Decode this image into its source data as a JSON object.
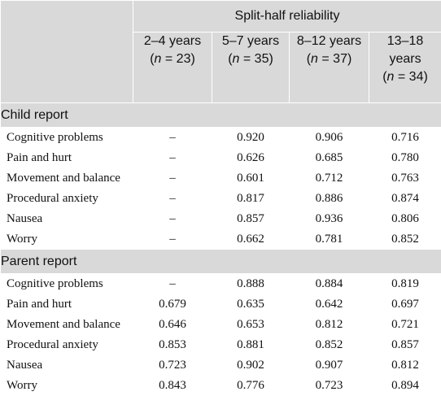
{
  "header": {
    "group_label": "Split-half reliability",
    "age_groups": [
      {
        "age": "2–4 years",
        "n_pre": "(",
        "n_var": "n",
        "n_post": " = 23)"
      },
      {
        "age": "5–7 years",
        "n_pre": "(",
        "n_var": "n",
        "n_post": " = 35)"
      },
      {
        "age": "8–12 years",
        "n_pre": "(",
        "n_var": "n",
        "n_post": " = 37)"
      },
      {
        "age_line1": "13–18",
        "age_line2": "years",
        "n_pre": "(",
        "n_var": "n",
        "n_post": " = 34)"
      }
    ]
  },
  "sections": [
    {
      "title": "Child report",
      "rows": [
        {
          "label": "Cognitive problems",
          "values": [
            "–",
            "0.920",
            "0.906",
            "0.716"
          ]
        },
        {
          "label": "Pain and hurt",
          "values": [
            "–",
            "0.626",
            "0.685",
            "0.780"
          ]
        },
        {
          "label": "Movement and balance",
          "values": [
            "–",
            "0.601",
            "0.712",
            "0.763"
          ]
        },
        {
          "label": "Procedural anxiety",
          "values": [
            "–",
            "0.817",
            "0.886",
            "0.874"
          ]
        },
        {
          "label": "Nausea",
          "values": [
            "–",
            "0.857",
            "0.936",
            "0.806"
          ]
        },
        {
          "label": "Worry",
          "values": [
            "–",
            "0.662",
            "0.781",
            "0.852"
          ]
        }
      ]
    },
    {
      "title": "Parent report",
      "rows": [
        {
          "label": "Cognitive problems",
          "values": [
            "–",
            "0.888",
            "0.884",
            "0.819"
          ]
        },
        {
          "label": "Pain and hurt",
          "values": [
            "0.679",
            "0.635",
            "0.642",
            "0.697"
          ]
        },
        {
          "label": "Movement and balance",
          "values": [
            "0.646",
            "0.653",
            "0.812",
            "0.721"
          ]
        },
        {
          "label": "Procedural anxiety",
          "values": [
            "0.853",
            "0.881",
            "0.852",
            "0.857"
          ]
        },
        {
          "label": "Nausea",
          "values": [
            "0.723",
            "0.902",
            "0.907",
            "0.812"
          ]
        },
        {
          "label": "Worry",
          "values": [
            "0.843",
            "0.776",
            "0.723",
            "0.894"
          ]
        }
      ]
    }
  ]
}
